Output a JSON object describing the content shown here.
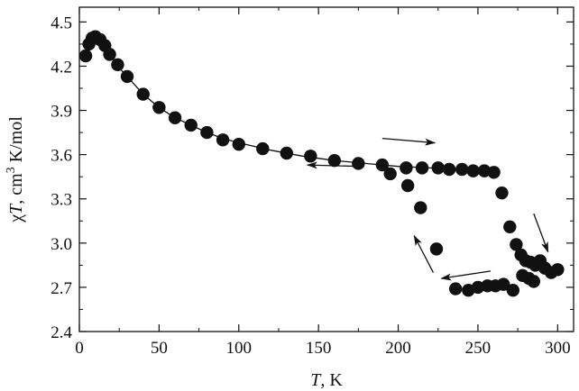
{
  "chart_data": {
    "type": "scatter",
    "xlabel": "T, K",
    "ylabel": "χT, cm3 K/mol",
    "xlim": [
      0,
      310
    ],
    "ylim": [
      2.4,
      4.6
    ],
    "xticks": [
      "0",
      "50",
      "100",
      "150",
      "200",
      "250",
      "300"
    ],
    "xtick_values": [
      0,
      50,
      100,
      150,
      200,
      250,
      300
    ],
    "yticks": [
      "2.4",
      "2.7",
      "3.0",
      "3.3",
      "3.6",
      "3.9",
      "4.2",
      "4.5"
    ],
    "ytick_values": [
      2.4,
      2.7,
      3.0,
      3.3,
      3.6,
      3.9,
      4.2,
      4.5
    ],
    "grid": false,
    "series": [
      {
        "values": [
          [
            4,
            4.27
          ],
          [
            6,
            4.35
          ],
          [
            8,
            4.39
          ],
          [
            10,
            4.4
          ],
          [
            13,
            4.38
          ],
          [
            16,
            4.34
          ],
          [
            19,
            4.28
          ],
          [
            24,
            4.21
          ],
          [
            30,
            4.13
          ],
          [
            40,
            4.01
          ],
          [
            50,
            3.92
          ],
          [
            60,
            3.85
          ],
          [
            70,
            3.8
          ],
          [
            80,
            3.75
          ],
          [
            90,
            3.7
          ],
          [
            100,
            3.67
          ],
          [
            115,
            3.64
          ],
          [
            130,
            3.61
          ],
          [
            145,
            3.59
          ],
          [
            160,
            3.56
          ],
          [
            175,
            3.54
          ],
          [
            190,
            3.53
          ],
          [
            195,
            3.47
          ],
          [
            205,
            3.51
          ],
          [
            215,
            3.51
          ],
          [
            225,
            3.51
          ],
          [
            232,
            3.5
          ],
          [
            240,
            3.5
          ],
          [
            247,
            3.49
          ],
          [
            254,
            3.49
          ],
          [
            260,
            3.48
          ],
          [
            265,
            3.34
          ],
          [
            270,
            3.11
          ],
          [
            274,
            2.99
          ],
          [
            277,
            2.92
          ],
          [
            280,
            2.88
          ],
          [
            283,
            2.87
          ],
          [
            286,
            2.85
          ],
          [
            289,
            2.88
          ],
          [
            292,
            2.83
          ],
          [
            296,
            2.8
          ],
          [
            300,
            2.82
          ],
          [
            278,
            2.78
          ],
          [
            282,
            2.76
          ],
          [
            285,
            2.74
          ],
          [
            272,
            2.68
          ],
          [
            266,
            2.72
          ],
          [
            261,
            2.71
          ],
          [
            256,
            2.71
          ],
          [
            250,
            2.7
          ],
          [
            244,
            2.68
          ],
          [
            236,
            2.69
          ],
          [
            224,
            2.96
          ],
          [
            214,
            3.24
          ],
          [
            206,
            3.39
          ]
        ]
      }
    ],
    "fit_curve": [
      [
        4,
        4.28
      ],
      [
        8,
        4.38
      ],
      [
        10,
        4.4
      ],
      [
        13,
        4.38
      ],
      [
        16,
        4.34
      ],
      [
        20,
        4.27
      ],
      [
        25,
        4.19
      ],
      [
        30,
        4.13
      ],
      [
        40,
        4.01
      ],
      [
        50,
        3.92
      ],
      [
        60,
        3.85
      ],
      [
        70,
        3.8
      ],
      [
        80,
        3.75
      ],
      [
        90,
        3.71
      ],
      [
        100,
        3.68
      ],
      [
        120,
        3.63
      ],
      [
        140,
        3.59
      ],
      [
        160,
        3.56
      ],
      [
        180,
        3.54
      ],
      [
        200,
        3.52
      ],
      [
        220,
        3.51
      ],
      [
        240,
        3.5
      ],
      [
        260,
        3.48
      ]
    ],
    "arrows": [
      {
        "from": [
          190,
          3.71
        ],
        "to": [
          223,
          3.68
        ]
      },
      {
        "from": [
          177,
          3.52
        ],
        "to": [
          143,
          3.53
        ]
      },
      {
        "from": [
          285,
          3.2
        ],
        "to": [
          294,
          2.94
        ]
      },
      {
        "from": [
          258,
          2.81
        ],
        "to": [
          227,
          2.76
        ]
      },
      {
        "from": [
          222,
          2.8
        ],
        "to": [
          210,
          3.05
        ]
      }
    ]
  }
}
